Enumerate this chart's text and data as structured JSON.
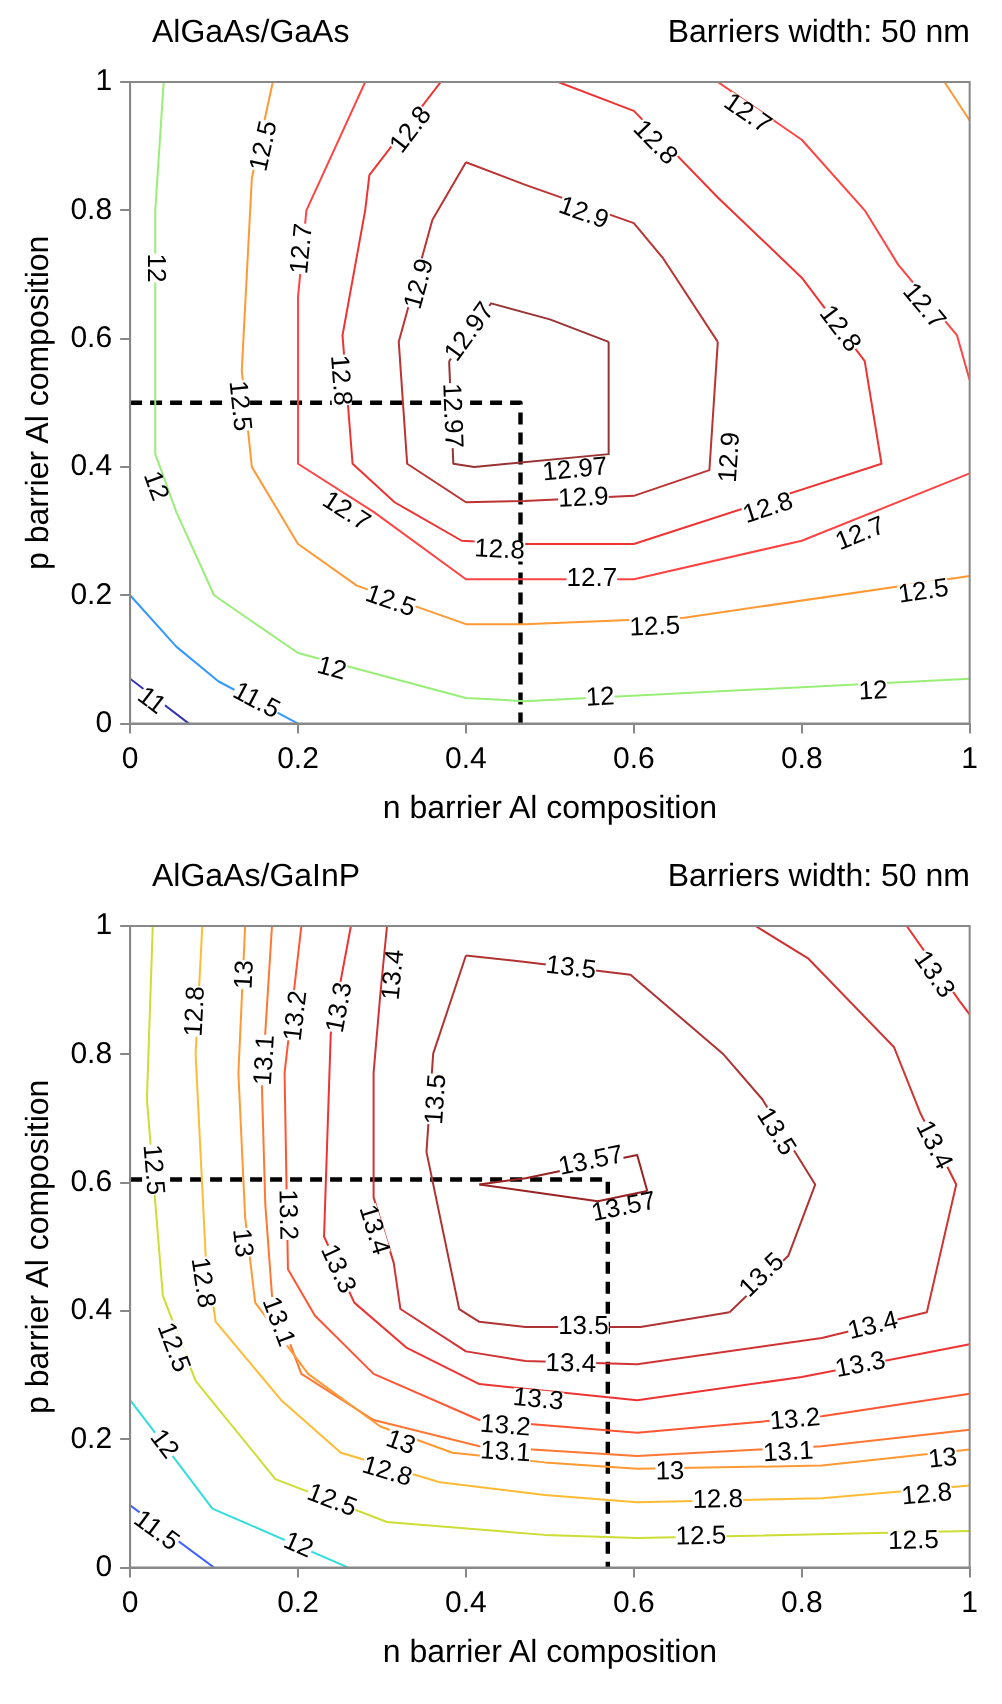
{
  "chart_data": [
    {
      "type": "line",
      "title": "AlGaAs/GaAs",
      "subtitle": "Barriers width: 50 nm",
      "xlabel": "n barrier Al composition",
      "ylabel": "p barrier Al composition",
      "xlim": [
        0,
        1
      ],
      "ylim": [
        0,
        1
      ],
      "xticks": [
        0,
        0.2,
        0.4,
        0.6,
        0.8,
        1
      ],
      "yticks": [
        0,
        0.2,
        0.4,
        0.6,
        0.8,
        1
      ],
      "series": [
        {
          "color": "#3030b0",
          "x": [
            0,
            0.07
          ],
          "values": [
            0.07,
            0
          ]
        },
        {
          "color": "#3399ff",
          "x": [
            0,
            0.055,
            0.105,
            0.2
          ],
          "values": [
            0.2,
            0.12,
            0.066,
            0
          ]
        },
        {
          "color": "#99ee77",
          "x": [
            0.04,
            0.03,
            0.03,
            0.055,
            0.1,
            0.2,
            0.4,
            0.47,
            1
          ],
          "values": [
            1,
            0.8,
            0.42,
            0.33,
            0.2,
            0.11,
            0.04,
            0.035,
            0.07
          ]
        },
        {
          "color": "#ff9933",
          "x": [
            0.17,
            0.145,
            0.133,
            0.145,
            0.2,
            0.27,
            0.4,
            0.47,
            0.66,
            1
          ],
          "values": [
            1,
            0.85,
            0.55,
            0.4,
            0.28,
            0.215,
            0.155,
            0.155,
            0.165,
            0.23
          ]
        },
        {
          "color": "#ff9933",
          "x": [
            0.97,
            1
          ],
          "values": [
            1,
            0.94
          ]
        },
        {
          "color": "#ff4444",
          "x": [
            0.28,
            0.21,
            0.2,
            0.2,
            0.29,
            0.4,
            0.47,
            0.6,
            0.8,
            1
          ],
          "values": [
            1,
            0.8,
            0.665,
            0.405,
            0.33,
            0.225,
            0.225,
            0.225,
            0.285,
            0.39
          ]
        },
        {
          "color": "#ff4444",
          "x": [
            0.7,
            0.8,
            0.875,
            0.915,
            0.985,
            1
          ],
          "values": [
            1,
            0.91,
            0.8,
            0.715,
            0.605,
            0.535
          ]
        },
        {
          "color": "#ee3333",
          "x": [
            0.37,
            0.285,
            0.28,
            0.253,
            0.265,
            0.315,
            0.395,
            0.47,
            0.6,
            0.895,
            0.875,
            0.8,
            0.7,
            0.6,
            0.51
          ],
          "values": [
            1,
            0.855,
            0.8,
            0.605,
            0.405,
            0.345,
            0.285,
            0.28,
            0.28,
            0.405,
            0.565,
            0.695,
            0.82,
            0.955,
            1
          ]
        },
        {
          "color": "#bb3333",
          "x": [
            0.4,
            0.36,
            0.32,
            0.33,
            0.4,
            0.47,
            0.6,
            0.69,
            0.7
          ],
          "values": [
            0.875,
            0.785,
            0.595,
            0.405,
            0.345,
            0.347,
            0.355,
            0.395,
            0.595
          ]
        },
        {
          "color": "#bb3333",
          "x": [
            0.7,
            0.635,
            0.6,
            0.47,
            0.4
          ],
          "values": [
            0.595,
            0.725,
            0.78,
            0.84,
            0.875
          ]
        },
        {
          "color": "#993333",
          "x": [
            0.38,
            0.385,
            0.41,
            0.57,
            0.57
          ],
          "values": [
            0.565,
            0.405,
            0.4,
            0.42,
            0.595
          ]
        },
        {
          "color": "#993333",
          "x": [
            0.57,
            0.5,
            0.43,
            0.38
          ],
          "values": [
            0.595,
            0.63,
            0.655,
            0.565
          ]
        },
        {
          "color": "#000000",
          "line_style": "dashed",
          "x": [
            0,
            0.465,
            0.465
          ],
          "values": [
            0.5,
            0.5,
            0
          ]
        }
      ],
      "annotations": [
        {
          "text": "12",
          "x": 0.03,
          "y": 0.71
        },
        {
          "text": "12.5",
          "x": 0.16,
          "y": 0.9
        },
        {
          "text": "12.8",
          "x": 0.335,
          "y": 0.925
        },
        {
          "text": "12.7",
          "x": 0.205,
          "y": 0.74
        },
        {
          "text": "12.9",
          "x": 0.345,
          "y": 0.685
        },
        {
          "text": "12.97",
          "x": 0.383,
          "y": 0.48
        },
        {
          "text": "12.97",
          "x": 0.405,
          "y": 0.61
        },
        {
          "text": "12.8",
          "x": 0.25,
          "y": 0.535
        },
        {
          "text": "12.5",
          "x": 0.13,
          "y": 0.495
        },
        {
          "text": "12",
          "x": 0.03,
          "y": 0.37
        },
        {
          "text": "12.7",
          "x": 0.257,
          "y": 0.33
        },
        {
          "text": "12.9",
          "x": 0.54,
          "y": 0.351
        },
        {
          "text": "12.8",
          "x": 0.44,
          "y": 0.27
        },
        {
          "text": "12.5",
          "x": 0.31,
          "y": 0.19
        },
        {
          "text": "11.5",
          "x": 0.15,
          "y": 0.035
        },
        {
          "text": "11",
          "x": 0.025,
          "y": 0.035
        },
        {
          "text": "12",
          "x": 0.24,
          "y": 0.085
        },
        {
          "text": "12.7",
          "x": 0.735,
          "y": 0.95
        },
        {
          "text": "12.8",
          "x": 0.625,
          "y": 0.905
        },
        {
          "text": "12.9",
          "x": 0.54,
          "y": 0.795
        },
        {
          "text": "12.8",
          "x": 0.845,
          "y": 0.615
        },
        {
          "text": "12.7",
          "x": 0.945,
          "y": 0.65
        },
        {
          "text": "12.9",
          "x": 0.715,
          "y": 0.415
        },
        {
          "text": "12.97",
          "x": 0.53,
          "y": 0.395
        },
        {
          "text": "12.8",
          "x": 0.76,
          "y": 0.335
        },
        {
          "text": "12.7",
          "x": 0.87,
          "y": 0.295
        },
        {
          "text": "12.7",
          "x": 0.55,
          "y": 0.225
        },
        {
          "text": "12.5",
          "x": 0.625,
          "y": 0.15
        },
        {
          "text": "12.5",
          "x": 0.945,
          "y": 0.205
        },
        {
          "text": "12",
          "x": 0.56,
          "y": 0.04
        },
        {
          "text": "12",
          "x": 0.885,
          "y": 0.05
        }
      ]
    },
    {
      "type": "line",
      "title": "AlGaAs/GaInP",
      "subtitle": "Barriers width: 50 nm",
      "xlabel": "n barrier Al composition",
      "ylabel": "p barrier Al composition",
      "xlim": [
        0,
        1
      ],
      "ylim": [
        0,
        1
      ],
      "xticks": [
        0,
        0.2,
        0.4,
        0.6,
        0.8,
        1
      ],
      "yticks": [
        0,
        0.2,
        0.4,
        0.6,
        0.8,
        1
      ],
      "series": [
        {
          "color": "#4060ff",
          "x": [
            0,
            0.1
          ],
          "values": [
            0.097,
            0
          ]
        },
        {
          "color": "#33dddd",
          "x": [
            0,
            0.024,
            0.098,
            0.26
          ],
          "values": [
            0.261,
            0.22,
            0.092,
            0
          ]
        },
        {
          "color": "#ccdd33",
          "x": [
            0.027,
            0.02,
            0.039,
            0.078,
            0.173,
            0.306,
            0.494,
            0.604,
            1
          ],
          "values": [
            1,
            0.73,
            0.424,
            0.291,
            0.138,
            0.071,
            0.051,
            0.046,
            0.057
          ]
        },
        {
          "color": "#ffbb33",
          "x": [
            0.086,
            0.078,
            0.09,
            0.102,
            0.18,
            0.251,
            0.369,
            0.494,
            0.604,
            0.824,
            1
          ],
          "values": [
            1,
            0.801,
            0.486,
            0.383,
            0.261,
            0.179,
            0.133,
            0.113,
            0.102,
            0.108,
            0.128
          ]
        },
        {
          "color": "#ff9933",
          "x": [
            0.137,
            0.129,
            0.137,
            0.149,
            0.212,
            0.298,
            0.384,
            0.494,
            0.604,
            0.824,
            1
          ],
          "values": [
            1,
            0.771,
            0.546,
            0.413,
            0.302,
            0.22,
            0.179,
            0.164,
            0.154,
            0.159,
            0.184
          ]
        },
        {
          "color": "#ff7733",
          "x": [
            0.169,
            0.157,
            0.161,
            0.169,
            0.204,
            0.29,
            0.416,
            0.604,
            0.824,
            1
          ],
          "values": [
            1,
            0.75,
            0.567,
            0.424,
            0.302,
            0.23,
            0.189,
            0.174,
            0.189,
            0.215
          ]
        },
        {
          "color": "#ff5533",
          "x": [
            0.204,
            0.184,
            0.188,
            0.22,
            0.29,
            0.416,
            0.604,
            0.824,
            1
          ],
          "values": [
            1,
            0.771,
            0.465,
            0.393,
            0.302,
            0.23,
            0.21,
            0.236,
            0.271
          ]
        },
        {
          "color": "#ee3333",
          "x": [
            0.263,
            0.239,
            0.231,
            0.267,
            0.329,
            0.416,
            0.604,
            0.8,
            1
          ],
          "values": [
            1,
            0.832,
            0.516,
            0.413,
            0.343,
            0.286,
            0.261,
            0.297,
            0.348
          ]
        },
        {
          "color": "#ee3333",
          "x": [
            0.925,
            0.988,
            1
          ],
          "values": [
            1,
            0.883,
            0.862
          ]
        },
        {
          "color": "#d03333",
          "x": [
            0.306,
            0.298,
            0.29,
            0.29,
            0.314,
            0.322,
            0.4,
            0.471,
            0.604,
            0.824,
            0.949,
            0.984,
            0.941,
            0.91,
            0.808,
            0.745
          ],
          "values": [
            1,
            0.893,
            0.771,
            0.577,
            0.475,
            0.403,
            0.337,
            0.322,
            0.317,
            0.358,
            0.398,
            0.597,
            0.709,
            0.811,
            0.949,
            1
          ]
        },
        {
          "color": "#b03333",
          "x": [
            0.4,
            0.361,
            0.353,
            0.392,
            0.416,
            0.471,
            0.608,
            0.714
          ],
          "values": [
            0.954,
            0.801,
            0.648,
            0.403,
            0.383,
            0.375,
            0.375,
            0.398
          ]
        },
        {
          "color": "#b03333",
          "x": [
            0.714,
            0.784,
            0.816,
            0.753,
            0.706,
            0.596,
            0.471,
            0.4
          ],
          "values": [
            0.398,
            0.486,
            0.597,
            0.73,
            0.801,
            0.924,
            0.944,
            0.954
          ]
        },
        {
          "color": "#992222",
          "x": [
            0.416,
            0.471,
            0.604,
            0.616
          ],
          "values": [
            0.597,
            0.607,
            0.643,
            0.587
          ]
        },
        {
          "color": "#992222",
          "x": [
            0.616,
            0.557,
            0.471,
            0.416
          ],
          "values": [
            0.587,
            0.571,
            0.587,
            0.597
          ]
        },
        {
          "color": "#000000",
          "line_style": "dashed",
          "x": [
            0,
            0.569,
            0.569
          ],
          "values": [
            0.605,
            0.605,
            0
          ]
        }
      ],
      "annotations": [
        {
          "text": "11.5",
          "x": 0.031,
          "y": 0.057
        },
        {
          "text": "12",
          "x": 0.04,
          "y": 0.192
        },
        {
          "text": "12",
          "x": 0.2,
          "y": 0.034
        },
        {
          "text": "12.5",
          "x": 0.027,
          "y": 0.62
        },
        {
          "text": "12.5",
          "x": 0.051,
          "y": 0.343
        },
        {
          "text": "12.5",
          "x": 0.24,
          "y": 0.104
        },
        {
          "text": "12.5",
          "x": 0.68,
          "y": 0.048
        },
        {
          "text": "12.5",
          "x": 0.933,
          "y": 0.041
        },
        {
          "text": "12.8",
          "x": 0.078,
          "y": 0.867
        },
        {
          "text": "12.8",
          "x": 0.086,
          "y": 0.444
        },
        {
          "text": "12.8",
          "x": 0.306,
          "y": 0.149
        },
        {
          "text": "12.8",
          "x": 0.7,
          "y": 0.105
        },
        {
          "text": "12.8",
          "x": 0.949,
          "y": 0.113
        },
        {
          "text": "13",
          "x": 0.137,
          "y": 0.924
        },
        {
          "text": "13",
          "x": 0.133,
          "y": 0.506
        },
        {
          "text": "13",
          "x": 0.322,
          "y": 0.194
        },
        {
          "text": "13",
          "x": 0.643,
          "y": 0.149
        },
        {
          "text": "13",
          "x": 0.968,
          "y": 0.169
        },
        {
          "text": "13.1",
          "x": 0.161,
          "y": 0.791
        },
        {
          "text": "13.1",
          "x": 0.176,
          "y": 0.383
        },
        {
          "text": "13.1",
          "x": 0.447,
          "y": 0.179
        },
        {
          "text": "13.1",
          "x": 0.784,
          "y": 0.179
        },
        {
          "text": "13.2",
          "x": 0.198,
          "y": 0.86
        },
        {
          "text": "13.2",
          "x": 0.187,
          "y": 0.55
        },
        {
          "text": "13.2",
          "x": 0.447,
          "y": 0.22
        },
        {
          "text": "13.2",
          "x": 0.792,
          "y": 0.23
        },
        {
          "text": "13.3",
          "x": 0.25,
          "y": 0.873
        },
        {
          "text": "13.3",
          "x": 0.247,
          "y": 0.465
        },
        {
          "text": "13.3",
          "x": 0.486,
          "y": 0.261
        },
        {
          "text": "13.3",
          "x": 0.87,
          "y": 0.315
        },
        {
          "text": "13.3",
          "x": 0.957,
          "y": 0.924
        },
        {
          "text": "13.4",
          "x": 0.314,
          "y": 0.924
        },
        {
          "text": "13.4",
          "x": 0.29,
          "y": 0.526
        },
        {
          "text": "13.4",
          "x": 0.525,
          "y": 0.317
        },
        {
          "text": "13.4",
          "x": 0.885,
          "y": 0.376
        },
        {
          "text": "13.4",
          "x": 0.957,
          "y": 0.658
        },
        {
          "text": "13.5",
          "x": 0.365,
          "y": 0.73
        },
        {
          "text": "13.5",
          "x": 0.54,
          "y": 0.375
        },
        {
          "text": "13.5",
          "x": 0.525,
          "y": 0.934
        },
        {
          "text": "13.5",
          "x": 0.769,
          "y": 0.679
        },
        {
          "text": "13.5",
          "x": 0.753,
          "y": 0.455
        },
        {
          "text": "13.57",
          "x": 0.549,
          "y": 0.633
        },
        {
          "text": "13.57",
          "x": 0.588,
          "y": 0.561
        }
      ]
    }
  ]
}
